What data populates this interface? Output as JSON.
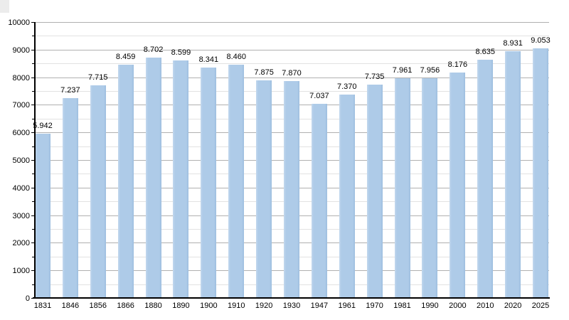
{
  "chart_data": {
    "type": "bar",
    "title": "",
    "categories": [
      "1831",
      "1846",
      "1856",
      "1866",
      "1880",
      "1890",
      "1900",
      "1910",
      "1920",
      "1930",
      "1947",
      "1961",
      "1970",
      "1981",
      "1990",
      "2000",
      "2010",
      "2020",
      "2025"
    ],
    "values": [
      5942,
      7237,
      7715,
      8459,
      8702,
      8599,
      8341,
      8460,
      7875,
      7870,
      7037,
      7370,
      7735,
      7961,
      7956,
      8176,
      8635,
      8931,
      9053
    ],
    "value_labels": [
      "5.942",
      "7.237",
      "7.715",
      "8.459",
      "8.702",
      "8.599",
      "8.341",
      "8.460",
      "7.875",
      "7.870",
      "7.037",
      "7.370",
      "7.735",
      "7.961",
      "7.956",
      "8.176",
      "8.635",
      "8.931",
      "9.053"
    ],
    "xlabel": "",
    "ylabel": "",
    "ylim": [
      0,
      10000
    ],
    "y_major_interval": 1000,
    "y_minor_interval": 500,
    "y_tick_labels": [
      "0",
      "1000",
      "2000",
      "3000",
      "4000",
      "5000",
      "6000",
      "7000",
      "8000",
      "9000",
      "10000"
    ],
    "grid": "major and minor horizontal gridlines",
    "legend": false,
    "colors": {
      "bar_fill": "#aecbe8",
      "bar_edge_light": "#c4d8ee",
      "bar_edge_dark": "#9dbedf",
      "major_grid": "#b0b0b0",
      "minor_grid": "#e2e2e2",
      "axis": "#000000",
      "text": "#000000",
      "corner_artifact": "#ececec"
    }
  }
}
